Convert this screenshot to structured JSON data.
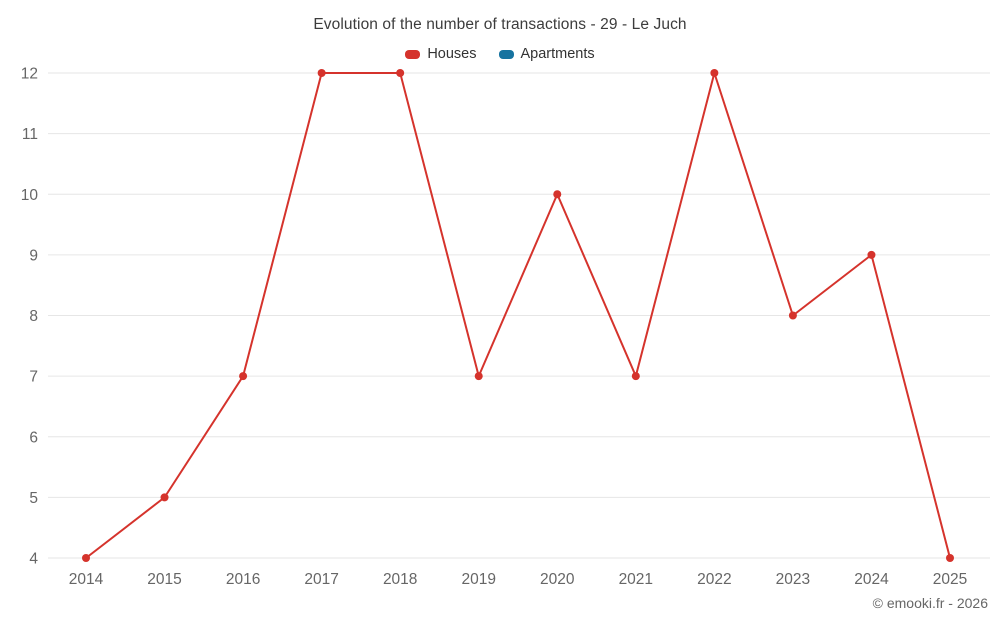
{
  "chart_data": {
    "type": "line",
    "title": "Evolution of the number of transactions - 29 - Le Juch",
    "categories": [
      "2014",
      "2015",
      "2016",
      "2017",
      "2018",
      "2019",
      "2020",
      "2021",
      "2022",
      "2023",
      "2024",
      "2025"
    ],
    "series": [
      {
        "name": "Houses",
        "color": "#d5332c",
        "values": [
          4,
          5,
          7,
          12,
          12,
          7,
          10,
          7,
          12,
          8,
          9,
          4
        ]
      },
      {
        "name": "Apartments",
        "color": "#1673a0",
        "values": []
      }
    ],
    "ylim": [
      4,
      12
    ],
    "yticks": [
      4,
      5,
      6,
      7,
      8,
      9,
      10,
      11,
      12
    ],
    "grid": true,
    "legend_position": "top",
    "xlabel": "",
    "ylabel": "",
    "grid_color": "#e6e6e6",
    "tick_label_color": "#666666",
    "copyright": "© emooki.fr - 2026"
  }
}
